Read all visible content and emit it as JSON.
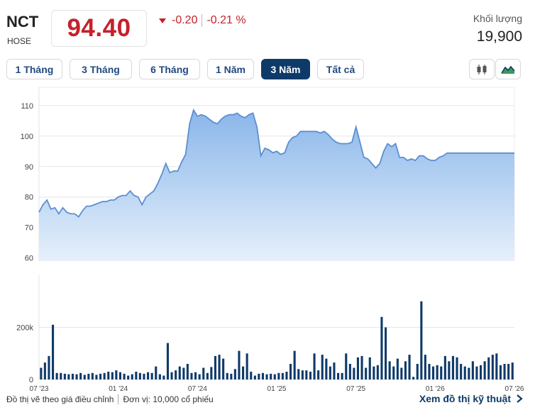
{
  "header": {
    "ticker": "NCT",
    "exchange": "HOSE",
    "price": "94.40",
    "change": "-0.20",
    "change_pct": "-0.21 %",
    "volume_label": "Khối lượng",
    "volume_value": "19,900",
    "down_color": "#c5212b"
  },
  "tabs": [
    {
      "label": "1 Tháng",
      "active": false
    },
    {
      "label": "3 Tháng",
      "active": false
    },
    {
      "label": "6 Tháng",
      "active": false
    },
    {
      "label": "1 Năm",
      "active": false
    },
    {
      "label": "3 Năm",
      "active": true
    },
    {
      "label": "Tất cả",
      "active": false
    }
  ],
  "chart_icons": [
    "candlestick-icon",
    "area-chart-icon"
  ],
  "chart_data": [
    {
      "type": "area",
      "x_ticks": [
        "07 '23",
        "01 '24",
        "07 '24",
        "01 '25",
        "07 '25",
        "01 '26",
        "07 '26"
      ],
      "y_ticks": [
        60,
        70,
        80,
        90,
        100,
        110
      ],
      "ylim": [
        59,
        116
      ],
      "line_color": "#5b8fd0",
      "x": [
        0,
        1.5,
        3,
        4.5,
        6,
        7.5,
        9,
        10.5,
        12,
        13.5,
        15,
        16.5,
        18,
        19.5,
        21,
        22.5,
        24,
        25.5,
        27,
        28.5,
        30,
        31.5,
        33,
        34.5,
        36,
        37.5,
        39,
        40.5,
        42,
        43.5,
        45,
        46.5,
        48,
        49.5,
        51,
        52.5,
        54,
        55.5,
        57,
        58.5,
        60,
        61.5,
        63,
        64.5,
        66,
        67.5,
        69,
        70.5,
        72,
        73.5,
        75,
        76.5,
        78,
        79.5,
        81,
        82.5,
        84,
        85.5,
        87,
        88.5,
        90,
        91.5,
        93,
        94.5,
        96,
        97.5,
        99,
        100.5,
        102,
        103.5,
        105,
        106.5,
        108,
        109.5,
        111,
        112.5,
        114,
        115.5,
        117,
        118.5,
        120,
        121.5,
        123,
        124.5,
        126,
        127.5,
        129,
        130.5,
        132,
        133.5,
        135,
        136.5,
        138,
        139.5,
        141,
        142.5,
        144,
        145.5,
        147,
        148.5,
        150,
        151.5,
        153,
        154.5,
        156,
        157.5,
        159,
        160.5,
        162,
        163.5,
        165,
        166.5,
        168,
        169.5,
        171,
        172.5,
        174,
        175.5,
        177,
        178.5,
        180
      ],
      "values": [
        75,
        77.5,
        79,
        76,
        76.5,
        74.5,
        76.5,
        75,
        74.5,
        74.5,
        73.5,
        75.5,
        77,
        77,
        77.5,
        78,
        78.5,
        78.5,
        79,
        79,
        80,
        80.5,
        80.5,
        82,
        80.5,
        80,
        77.5,
        80,
        81,
        82,
        84.5,
        87.5,
        91,
        88,
        88.5,
        88.5,
        91.5,
        94,
        104,
        108.5,
        106.5,
        107,
        106.5,
        105.5,
        104.5,
        104,
        105.5,
        106.5,
        107,
        107,
        107.5,
        106.5,
        106,
        107,
        107.5,
        103,
        93.5,
        96,
        95.5,
        94.5,
        95,
        94,
        94.5,
        98,
        99.5,
        100,
        101.5,
        101.5,
        101.5,
        101.5,
        101.5,
        101,
        101.5,
        100.5,
        99,
        98,
        97.5,
        97.5,
        97.5,
        98,
        103,
        98,
        93,
        92.5,
        91,
        89.5,
        91,
        95,
        97.5,
        96.5,
        97.5,
        93,
        93,
        92,
        92.5,
        92,
        93.5,
        93.5,
        92.5,
        92,
        92,
        93,
        93.5,
        94.4,
        94.4,
        94.4,
        94.4,
        94.4,
        94.4,
        94.4,
        94.4,
        94.4,
        94.4,
        94.4,
        94.4,
        94.4,
        94.4,
        94.4,
        94.4,
        94.4,
        94.4
      ]
    },
    {
      "type": "bar",
      "y_ticks": [
        0,
        200000
      ],
      "y_tick_labels": [
        "0",
        "200k"
      ],
      "ylim": [
        0,
        400000
      ],
      "bar_color": "#0e3a69",
      "values": [
        45000,
        65000,
        90000,
        210000,
        25000,
        25000,
        22000,
        20000,
        22000,
        20000,
        25000,
        18000,
        22000,
        25000,
        18000,
        22000,
        25000,
        30000,
        28000,
        35000,
        28000,
        22000,
        15000,
        20000,
        30000,
        25000,
        22000,
        28000,
        25000,
        50000,
        20000,
        15000,
        140000,
        28000,
        35000,
        50000,
        45000,
        60000,
        25000,
        28000,
        20000,
        45000,
        25000,
        48000,
        90000,
        95000,
        80000,
        25000,
        22000,
        40000,
        110000,
        50000,
        100000,
        30000,
        15000,
        22000,
        25000,
        20000,
        22000,
        20000,
        25000,
        25000,
        30000,
        60000,
        110000,
        40000,
        35000,
        35000,
        30000,
        100000,
        35000,
        95000,
        80000,
        50000,
        65000,
        25000,
        25000,
        100000,
        60000,
        45000,
        85000,
        90000,
        45000,
        85000,
        50000,
        55000,
        240000,
        200000,
        70000,
        50000,
        80000,
        45000,
        70000,
        95000,
        10000,
        60000,
        300000,
        95000,
        60000,
        50000,
        55000,
        50000,
        90000,
        70000,
        90000,
        85000,
        60000,
        50000,
        45000,
        70000,
        50000,
        55000,
        70000,
        85000,
        95000,
        100000,
        55000,
        60000,
        60000,
        65000
      ]
    }
  ],
  "footer": {
    "note": "Đồ thị vẽ theo giá điều chỉnh",
    "unit": "Đơn vị: 10,000 cổ phiếu",
    "link": "Xem đồ thị kỹ thuật"
  }
}
